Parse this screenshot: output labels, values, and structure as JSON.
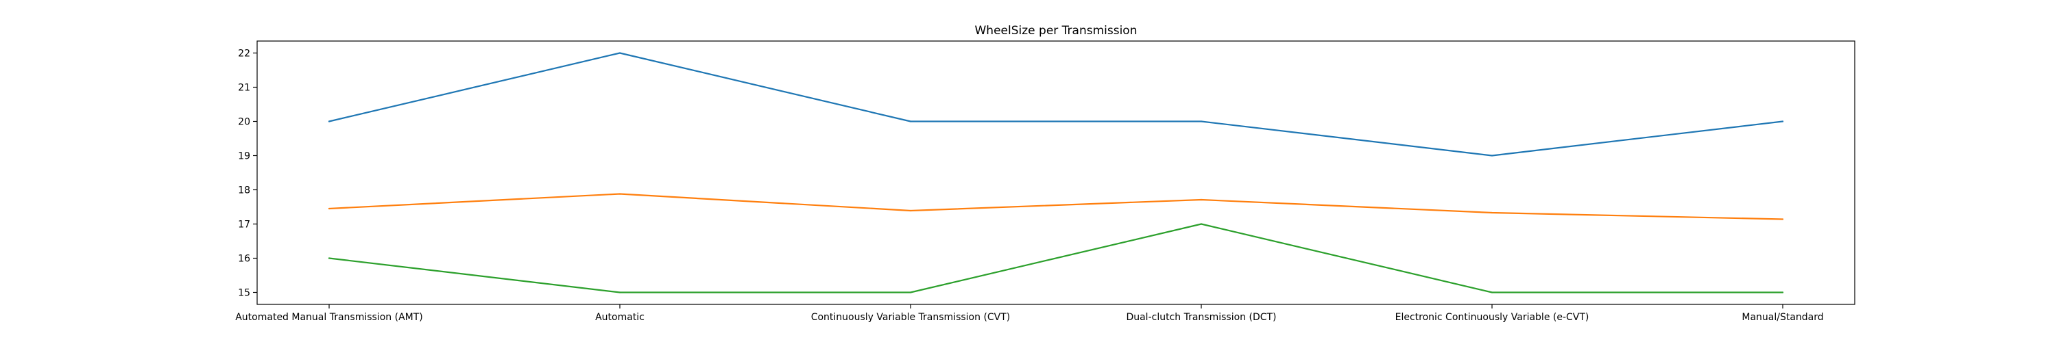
{
  "chart_data": {
    "type": "line",
    "title": "WheelSize per Transmission",
    "xlabel": "",
    "ylabel": "",
    "categories": [
      "Automated Manual Transmission (AMT)",
      "Automatic",
      "Continuously Variable Transmission (CVT)",
      "Dual-clutch Transmission (DCT)",
      "Electronic Continuously Variable (e-CVT)",
      "Manual/Standard"
    ],
    "ylim": [
      14.65,
      22.35
    ],
    "yticks": [
      15,
      16,
      17,
      18,
      19,
      20,
      21,
      22
    ],
    "grid": false,
    "series": [
      {
        "color": "#1f77b4",
        "values": [
          20,
          22,
          20,
          20,
          19,
          20
        ]
      },
      {
        "color": "#ff7f0e",
        "values": [
          17.45,
          17.88,
          17.39,
          17.71,
          17.33,
          17.14
        ]
      },
      {
        "color": "#2ca02c",
        "values": [
          16,
          15,
          15,
          17,
          15,
          15
        ]
      }
    ]
  }
}
